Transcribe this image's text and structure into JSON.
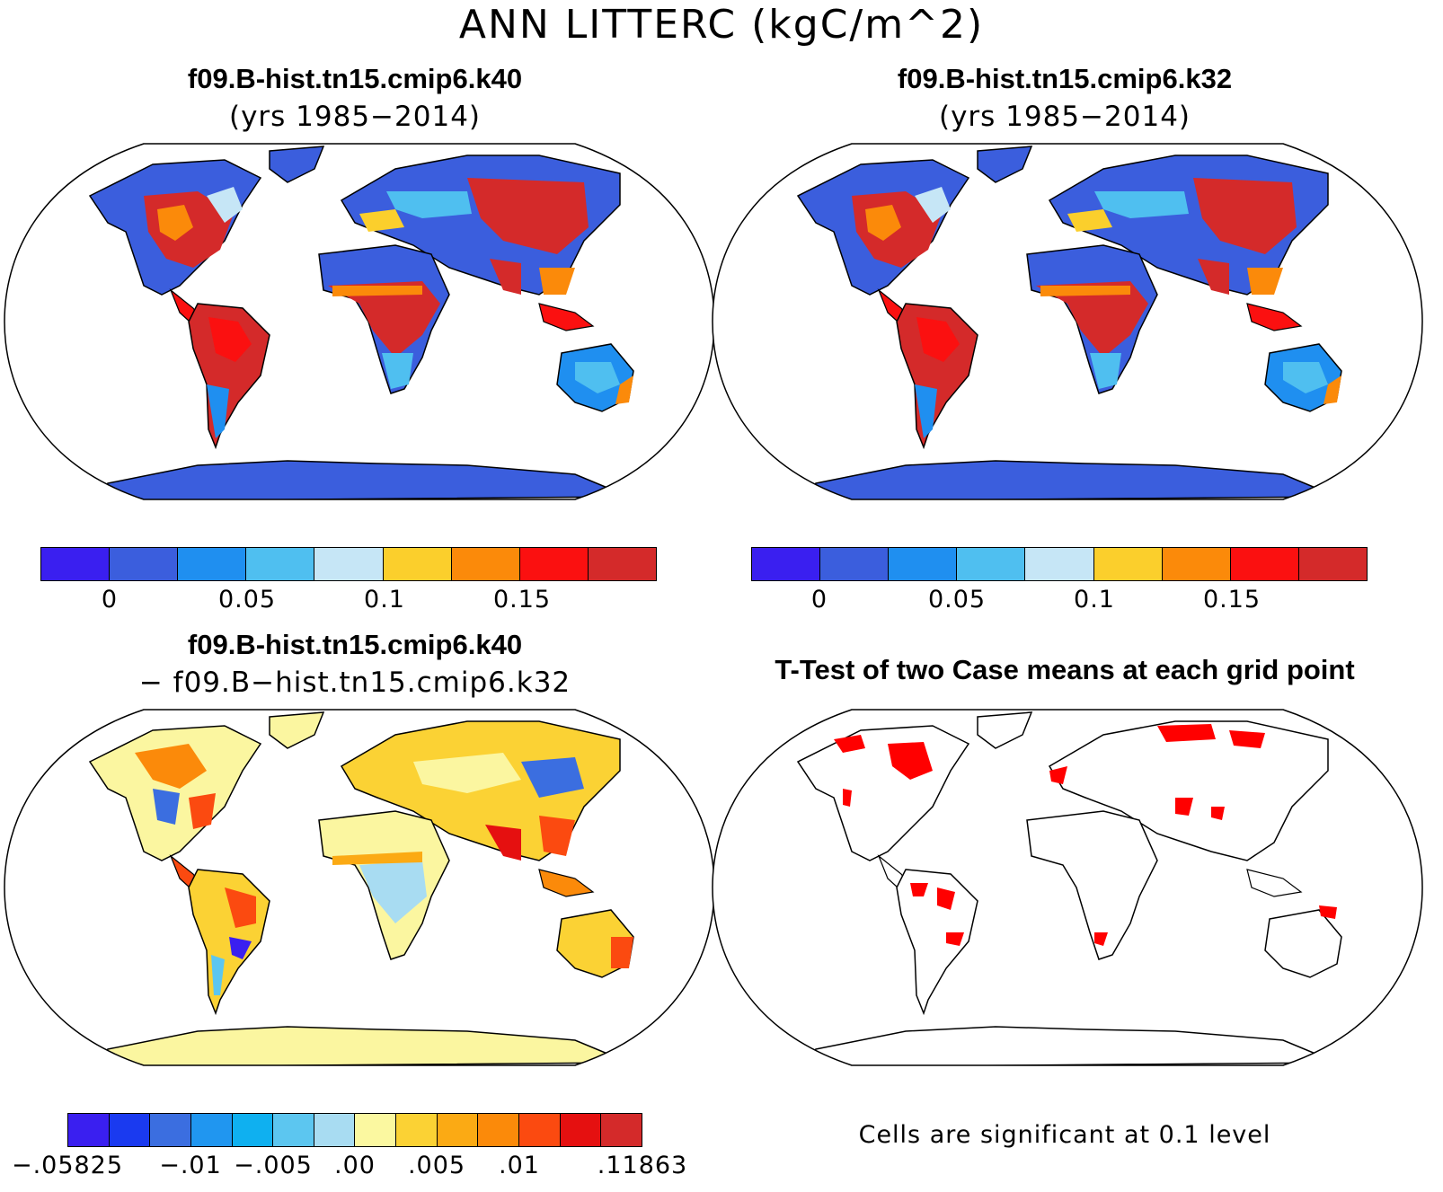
{
  "figure": {
    "title": "ANN LITTERC (kgC/m^2)"
  },
  "panels": {
    "top_left": {
      "title": "f09.B-hist.tn15.cmip6.k40",
      "subtitle": "(yrs 1985−2014)"
    },
    "top_right": {
      "title": "f09.B-hist.tn15.cmip6.k32",
      "subtitle": "(yrs 1985−2014)"
    },
    "bottom_left": {
      "title": "f09.B-hist.tn15.cmip6.k40",
      "subtitle": "− f09.B−hist.tn15.cmip6.k32"
    },
    "bottom_right": {
      "title": "T-Test of two Case means at each grid point",
      "note": "Cells are significant at 0.1 level"
    }
  },
  "colorbars": {
    "mean": {
      "colors": [
        "#3a1ff0",
        "#3b5edd",
        "#1f8ff0",
        "#4fbff0",
        "#c6e6f6",
        "#fbcf2c",
        "#fb8a0a",
        "#fb1010",
        "#d42a2a"
      ],
      "tick_labels": [
        "0",
        "0.05",
        "0.1",
        "0.15"
      ]
    },
    "diff": {
      "colors": [
        "#3a1ff0",
        "#1a3af0",
        "#3b6ee0",
        "#2096f0",
        "#0fb0f0",
        "#5cc6f0",
        "#a8dcf2",
        "#fbf8a0",
        "#fbd234",
        "#fbaa14",
        "#fb8a0a",
        "#fb4a10",
        "#e51010",
        "#d42a2a"
      ],
      "tick_labels": [
        "−.05825",
        "−.01",
        "−.005",
        ".00",
        ".005",
        ".01",
        ".11863"
      ]
    }
  },
  "map_colors": {
    "ocean": "#ffffff",
    "coast": "#000000",
    "significant": "#ff0000",
    "diff_base": "#fbf6a0",
    "antarctica_mean": "#3b5edd"
  }
}
